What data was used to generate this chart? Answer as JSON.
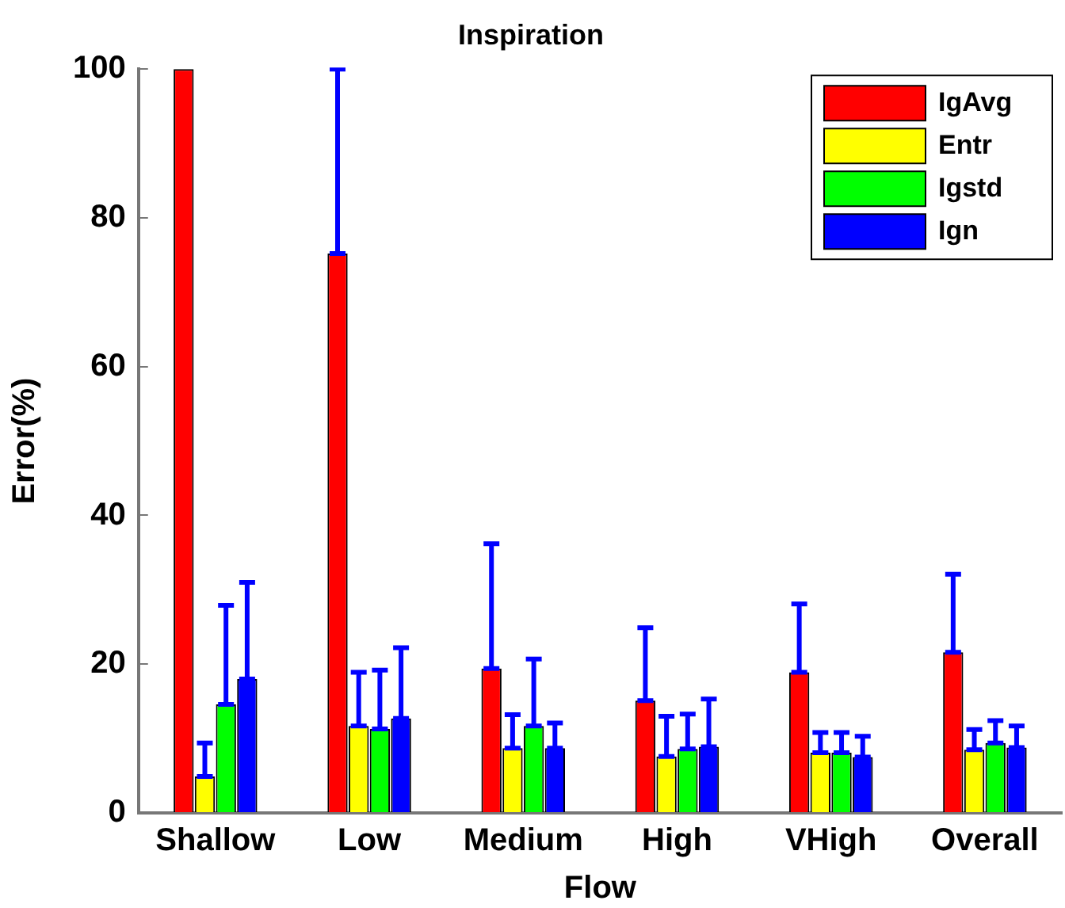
{
  "chart_data": {
    "type": "bar",
    "title": "Inspiration",
    "xlabel": "Flow",
    "ylabel": "Error(%)",
    "categories": [
      "Shallow",
      "Low",
      "Medium",
      "High",
      "VHigh",
      "Overall"
    ],
    "series": [
      {
        "name": "IgAvg",
        "color": "#ff0000",
        "values": [
          100,
          75.2,
          19.4,
          15.1,
          18.9,
          21.6
        ],
        "errors": [
          null,
          [
            75.2,
            100
          ],
          [
            19.4,
            36.2
          ],
          [
            15.1,
            24.9
          ],
          [
            18.9,
            28.1
          ],
          [
            21.6,
            32.1
          ]
        ]
      },
      {
        "name": "Entr",
        "color": "#ffff00",
        "values": [
          4.9,
          11.7,
          8.7,
          7.6,
          8.1,
          8.5
        ],
        "errors": [
          [
            4.9,
            9.4
          ],
          [
            11.7,
            18.9
          ],
          [
            8.7,
            13.2
          ],
          [
            7.6,
            13.0
          ],
          [
            8.1,
            10.8
          ],
          [
            8.5,
            11.2
          ]
        ]
      },
      {
        "name": "Igstd",
        "color": "#00ff00",
        "values": [
          14.6,
          11.3,
          11.7,
          8.6,
          8.1,
          9.4
        ],
        "errors": [
          [
            14.6,
            27.9
          ],
          [
            11.3,
            19.2
          ],
          [
            11.7,
            20.7
          ],
          [
            8.6,
            13.3
          ],
          [
            8.1,
            10.8
          ],
          [
            9.4,
            12.4
          ]
        ]
      },
      {
        "name": "Ign",
        "color": "#0000ff",
        "values": [
          18.0,
          12.7,
          8.7,
          8.9,
          7.5,
          8.8
        ],
        "errors": [
          [
            18.0,
            31.0
          ],
          [
            12.7,
            22.2
          ],
          [
            8.7,
            12.1
          ],
          [
            8.9,
            15.3
          ],
          [
            7.5,
            10.3
          ],
          [
            8.8,
            11.7
          ]
        ]
      }
    ],
    "ylim": [
      0,
      100
    ],
    "yticks": [
      0,
      20,
      40,
      60,
      80,
      100
    ],
    "grid": false,
    "legend": "top right"
  }
}
